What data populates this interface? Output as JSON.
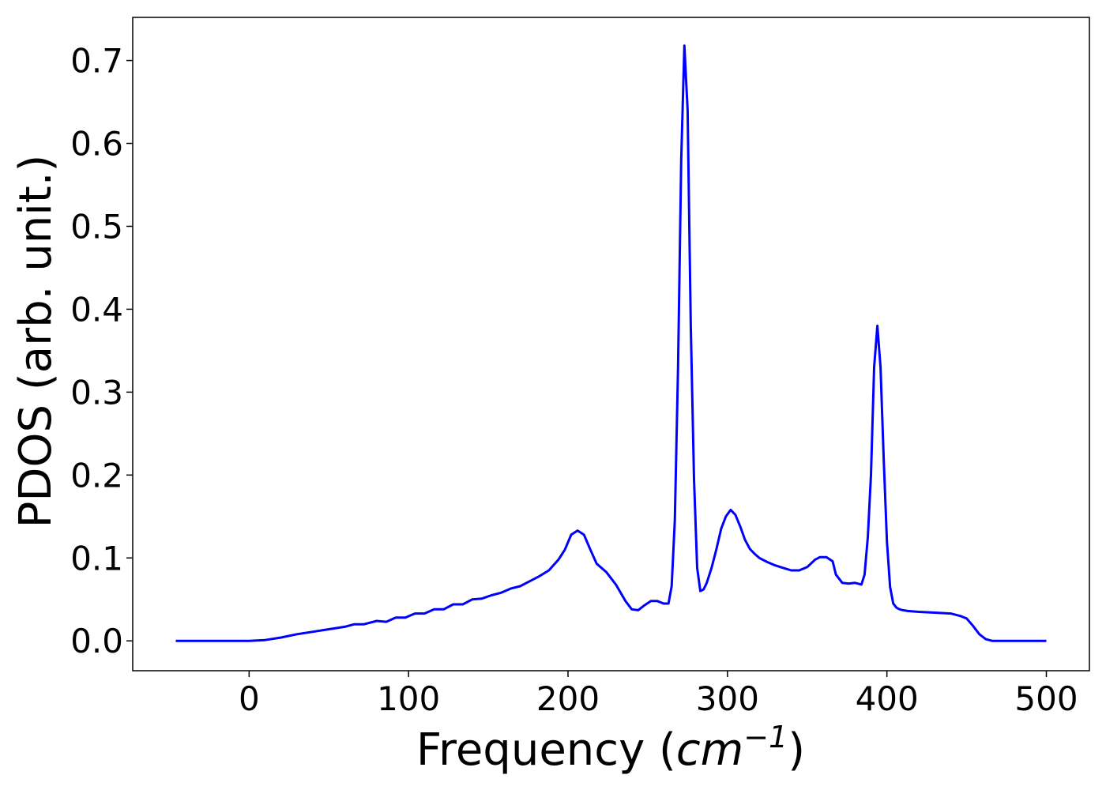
{
  "chart_data": {
    "type": "line",
    "title": "",
    "xlabel": "Frequency (",
    "xlabel_unit": "cm",
    "xlabel_exp": "−1",
    "xlabel_close": ")",
    "ylabel": "PDOS (arb. unit.)",
    "xlim": [
      -73,
      527
    ],
    "ylim": [
      -0.036,
      0.752
    ],
    "xticks": [
      0,
      100,
      200,
      300,
      400,
      500
    ],
    "xtick_labels": [
      "0",
      "100",
      "200",
      "300",
      "400",
      "500"
    ],
    "yticks": [
      0.0,
      0.1,
      0.2,
      0.3,
      0.4,
      0.5,
      0.6,
      0.7
    ],
    "ytick_labels": [
      "0.0",
      "0.1",
      "0.2",
      "0.3",
      "0.4",
      "0.5",
      "0.6",
      "0.7"
    ],
    "grid": false,
    "series": [
      {
        "color": "#0000ff",
        "x": [
          -46,
          -20,
          0,
          10,
          20,
          30,
          40,
          50,
          60,
          66,
          72,
          80,
          86,
          92,
          98,
          104,
          110,
          116,
          122,
          128,
          134,
          140,
          146,
          152,
          158,
          164,
          170,
          176,
          182,
          188,
          194,
          198,
          202,
          206,
          210,
          214,
          218,
          224,
          230,
          236,
          240,
          244,
          248,
          252,
          256,
          260,
          263,
          265,
          267,
          269,
          271,
          273,
          275,
          277,
          279,
          281,
          283,
          285,
          287,
          290,
          293,
          296,
          299,
          302,
          305,
          308,
          311,
          314,
          317,
          320,
          325,
          330,
          335,
          340,
          345,
          350,
          355,
          358,
          362,
          366,
          368,
          372,
          376,
          380,
          384,
          386,
          388,
          390,
          392,
          394,
          396,
          398,
          400,
          402,
          404,
          406,
          408,
          410,
          413,
          420,
          430,
          440,
          446,
          450,
          454,
          458,
          462,
          466,
          470,
          480,
          500
        ],
        "y": [
          0.0,
          0.0,
          0.0,
          0.001,
          0.004,
          0.008,
          0.011,
          0.014,
          0.017,
          0.02,
          0.02,
          0.024,
          0.023,
          0.028,
          0.028,
          0.033,
          0.033,
          0.038,
          0.038,
          0.044,
          0.044,
          0.05,
          0.051,
          0.055,
          0.058,
          0.063,
          0.066,
          0.072,
          0.078,
          0.085,
          0.098,
          0.11,
          0.128,
          0.133,
          0.128,
          0.11,
          0.093,
          0.083,
          0.068,
          0.048,
          0.038,
          0.037,
          0.043,
          0.048,
          0.048,
          0.045,
          0.045,
          0.066,
          0.145,
          0.33,
          0.58,
          0.718,
          0.64,
          0.38,
          0.195,
          0.088,
          0.06,
          0.062,
          0.07,
          0.088,
          0.11,
          0.135,
          0.15,
          0.158,
          0.152,
          0.138,
          0.122,
          0.111,
          0.105,
          0.1,
          0.095,
          0.091,
          0.088,
          0.085,
          0.085,
          0.089,
          0.098,
          0.101,
          0.101,
          0.096,
          0.08,
          0.07,
          0.069,
          0.07,
          0.068,
          0.08,
          0.125,
          0.2,
          0.33,
          0.38,
          0.33,
          0.22,
          0.12,
          0.065,
          0.045,
          0.04,
          0.038,
          0.037,
          0.036,
          0.035,
          0.034,
          0.033,
          0.03,
          0.027,
          0.018,
          0.008,
          0.002,
          0.0,
          0.0,
          0.0,
          0.0
        ]
      }
    ]
  }
}
